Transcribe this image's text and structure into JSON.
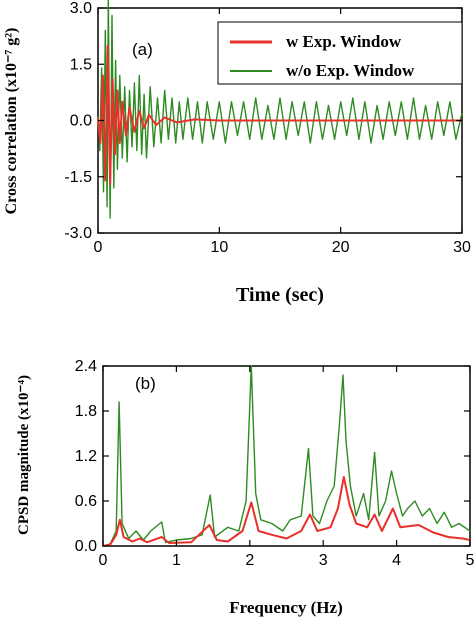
{
  "chart_data": [
    {
      "type": "line",
      "panel_label": "(a)",
      "xlabel": "Time (sec)",
      "ylabel": "Cross correlation (x10⁻⁷ g²)",
      "xlim": [
        0,
        30
      ],
      "ylim": [
        -3.0,
        3.0
      ],
      "x_ticks": [
        0,
        10,
        20,
        30
      ],
      "y_ticks": [
        "3.0",
        "1.5",
        "0.0",
        "-1.5",
        "-3.0"
      ],
      "legend_position": "top-right",
      "series": [
        {
          "name": "w Exp. Window",
          "color": "#e8312a",
          "points": [
            [
              0,
              0.05
            ],
            [
              0.2,
              -0.6
            ],
            [
              0.4,
              1.2
            ],
            [
              0.6,
              -1.6
            ],
            [
              0.8,
              2.0
            ],
            [
              1.0,
              -1.7
            ],
            [
              1.2,
              1.1
            ],
            [
              1.4,
              -0.9
            ],
            [
              1.6,
              0.8
            ],
            [
              1.8,
              -0.6
            ],
            [
              2.0,
              0.5
            ],
            [
              2.3,
              -0.4
            ],
            [
              2.6,
              0.35
            ],
            [
              3.0,
              -0.3
            ],
            [
              3.4,
              0.25
            ],
            [
              3.8,
              -0.2
            ],
            [
              4.2,
              0.15
            ],
            [
              4.8,
              -0.12
            ],
            [
              5.5,
              0.08
            ],
            [
              6.5,
              -0.05
            ],
            [
              8,
              0.03
            ],
            [
              10,
              0
            ],
            [
              30,
              0
            ]
          ]
        },
        {
          "name": "w/o Exp. Window",
          "color": "#2e8b22",
          "points": [
            [
              0,
              0.1
            ],
            [
              0.15,
              -0.8
            ],
            [
              0.3,
              1.4
            ],
            [
              0.45,
              -1.9
            ],
            [
              0.6,
              2.4
            ],
            [
              0.75,
              -2.3
            ],
            [
              0.85,
              3.3
            ],
            [
              1.0,
              -2.6
            ],
            [
              1.15,
              2.8
            ],
            [
              1.3,
              -1.8
            ],
            [
              1.45,
              1.6
            ],
            [
              1.6,
              -1.3
            ],
            [
              1.8,
              1.2
            ],
            [
              2.0,
              -1.0
            ],
            [
              2.2,
              0.9
            ],
            [
              2.4,
              -1.1
            ],
            [
              2.6,
              0.8
            ],
            [
              2.8,
              -0.7
            ],
            [
              3.0,
              1.0
            ],
            [
              3.2,
              -0.8
            ],
            [
              3.4,
              1.2
            ],
            [
              3.6,
              -0.9
            ],
            [
              3.8,
              0.7
            ],
            [
              4.0,
              -1.0
            ],
            [
              4.3,
              0.9
            ],
            [
              4.6,
              -0.7
            ],
            [
              4.9,
              0.6
            ],
            [
              5.2,
              -0.6
            ],
            [
              5.5,
              0.8
            ],
            [
              5.8,
              -0.5
            ],
            [
              6.1,
              0.6
            ],
            [
              6.4,
              -0.6
            ],
            [
              6.7,
              0.5
            ],
            [
              7.0,
              -0.5
            ],
            [
              7.4,
              0.6
            ],
            [
              7.8,
              -0.5
            ],
            [
              8.2,
              0.5
            ],
            [
              8.6,
              -0.6
            ],
            [
              9.0,
              0.5
            ],
            [
              9.5,
              -0.5
            ],
            [
              10,
              0.5
            ],
            [
              10.5,
              -0.6
            ],
            [
              11,
              0.5
            ],
            [
              11.5,
              -0.4
            ],
            [
              12,
              0.5
            ],
            [
              12.5,
              -0.5
            ],
            [
              13,
              0.6
            ],
            [
              13.5,
              -0.5
            ],
            [
              14,
              0.4
            ],
            [
              14.5,
              -0.5
            ],
            [
              15,
              0.6
            ],
            [
              15.5,
              -0.5
            ],
            [
              16,
              0.5
            ],
            [
              16.5,
              -0.4
            ],
            [
              17,
              0.5
            ],
            [
              17.5,
              -0.6
            ],
            [
              18,
              0.5
            ],
            [
              18.5,
              -0.5
            ],
            [
              19,
              0.4
            ],
            [
              19.5,
              -0.5
            ],
            [
              20,
              0.5
            ],
            [
              20.5,
              -0.4
            ],
            [
              21,
              0.6
            ],
            [
              21.5,
              -0.5
            ],
            [
              22,
              0.5
            ],
            [
              22.5,
              -0.6
            ],
            [
              23,
              0.4
            ],
            [
              23.5,
              -0.5
            ],
            [
              24,
              0.5
            ],
            [
              24.5,
              -0.4
            ],
            [
              25,
              0.5
            ],
            [
              25.5,
              -0.5
            ],
            [
              26,
              0.6
            ],
            [
              26.5,
              -0.5
            ],
            [
              27,
              0.4
            ],
            [
              27.5,
              -0.5
            ],
            [
              28,
              0.5
            ],
            [
              28.5,
              -0.4
            ],
            [
              29,
              0.5
            ],
            [
              29.5,
              -0.5
            ],
            [
              30,
              0.2
            ]
          ]
        }
      ]
    },
    {
      "type": "line",
      "panel_label": "(b)",
      "xlabel": "Frequency (Hz)",
      "ylabel": "CPSD magnitude (x10⁻⁴)",
      "xlim": [
        0,
        5
      ],
      "ylim": [
        0,
        2.4
      ],
      "x_ticks": [
        0,
        1,
        2,
        3,
        4,
        5
      ],
      "y_ticks": [
        "0.0",
        "0.6",
        "1.2",
        "1.8",
        "2.4"
      ],
      "series": [
        {
          "name": "w Exp. Window",
          "color": "#e8312a",
          "points": [
            [
              0,
              0
            ],
            [
              0.1,
              0.02
            ],
            [
              0.18,
              0.15
            ],
            [
              0.23,
              0.35
            ],
            [
              0.28,
              0.12
            ],
            [
              0.4,
              0.06
            ],
            [
              0.5,
              0.1
            ],
            [
              0.6,
              0.05
            ],
            [
              0.8,
              0.12
            ],
            [
              0.9,
              0.04
            ],
            [
              1.2,
              0.05
            ],
            [
              1.45,
              0.28
            ],
            [
              1.55,
              0.08
            ],
            [
              1.7,
              0.06
            ],
            [
              1.9,
              0.2
            ],
            [
              2.02,
              0.58
            ],
            [
              2.12,
              0.2
            ],
            [
              2.3,
              0.15
            ],
            [
              2.5,
              0.1
            ],
            [
              2.7,
              0.2
            ],
            [
              2.82,
              0.42
            ],
            [
              2.92,
              0.2
            ],
            [
              3.1,
              0.25
            ],
            [
              3.2,
              0.5
            ],
            [
              3.28,
              0.92
            ],
            [
              3.36,
              0.55
            ],
            [
              3.45,
              0.3
            ],
            [
              3.6,
              0.25
            ],
            [
              3.7,
              0.42
            ],
            [
              3.8,
              0.2
            ],
            [
              3.95,
              0.5
            ],
            [
              4.05,
              0.25
            ],
            [
              4.3,
              0.28
            ],
            [
              4.5,
              0.18
            ],
            [
              4.7,
              0.12
            ],
            [
              4.9,
              0.1
            ],
            [
              5,
              0.08
            ]
          ]
        },
        {
          "name": "w/o Exp. Window",
          "color": "#2e8b22",
          "points": [
            [
              0,
              0
            ],
            [
              0.1,
              0.03
            ],
            [
              0.18,
              0.2
            ],
            [
              0.22,
              1.92
            ],
            [
              0.26,
              0.3
            ],
            [
              0.35,
              0.1
            ],
            [
              0.45,
              0.2
            ],
            [
              0.55,
              0.08
            ],
            [
              0.65,
              0.2
            ],
            [
              0.8,
              0.32
            ],
            [
              0.85,
              0.05
            ],
            [
              1.0,
              0.08
            ],
            [
              1.2,
              0.1
            ],
            [
              1.35,
              0.15
            ],
            [
              1.46,
              0.68
            ],
            [
              1.52,
              0.12
            ],
            [
              1.7,
              0.25
            ],
            [
              1.85,
              0.2
            ],
            [
              1.95,
              0.6
            ],
            [
              2.02,
              2.4
            ],
            [
              2.08,
              0.7
            ],
            [
              2.15,
              0.35
            ],
            [
              2.3,
              0.3
            ],
            [
              2.45,
              0.2
            ],
            [
              2.55,
              0.35
            ],
            [
              2.7,
              0.4
            ],
            [
              2.8,
              1.3
            ],
            [
              2.86,
              0.4
            ],
            [
              2.95,
              0.3
            ],
            [
              3.05,
              0.6
            ],
            [
              3.15,
              0.8
            ],
            [
              3.22,
              1.6
            ],
            [
              3.27,
              2.28
            ],
            [
              3.31,
              1.4
            ],
            [
              3.37,
              0.8
            ],
            [
              3.45,
              0.4
            ],
            [
              3.55,
              0.7
            ],
            [
              3.62,
              0.35
            ],
            [
              3.7,
              1.25
            ],
            [
              3.76,
              0.4
            ],
            [
              3.85,
              0.6
            ],
            [
              3.93,
              1.0
            ],
            [
              4.0,
              0.7
            ],
            [
              4.08,
              0.4
            ],
            [
              4.15,
              0.5
            ],
            [
              4.25,
              0.6
            ],
            [
              4.35,
              0.4
            ],
            [
              4.45,
              0.5
            ],
            [
              4.55,
              0.3
            ],
            [
              4.65,
              0.45
            ],
            [
              4.75,
              0.25
            ],
            [
              4.85,
              0.3
            ],
            [
              5.0,
              0.2
            ]
          ]
        }
      ]
    }
  ]
}
